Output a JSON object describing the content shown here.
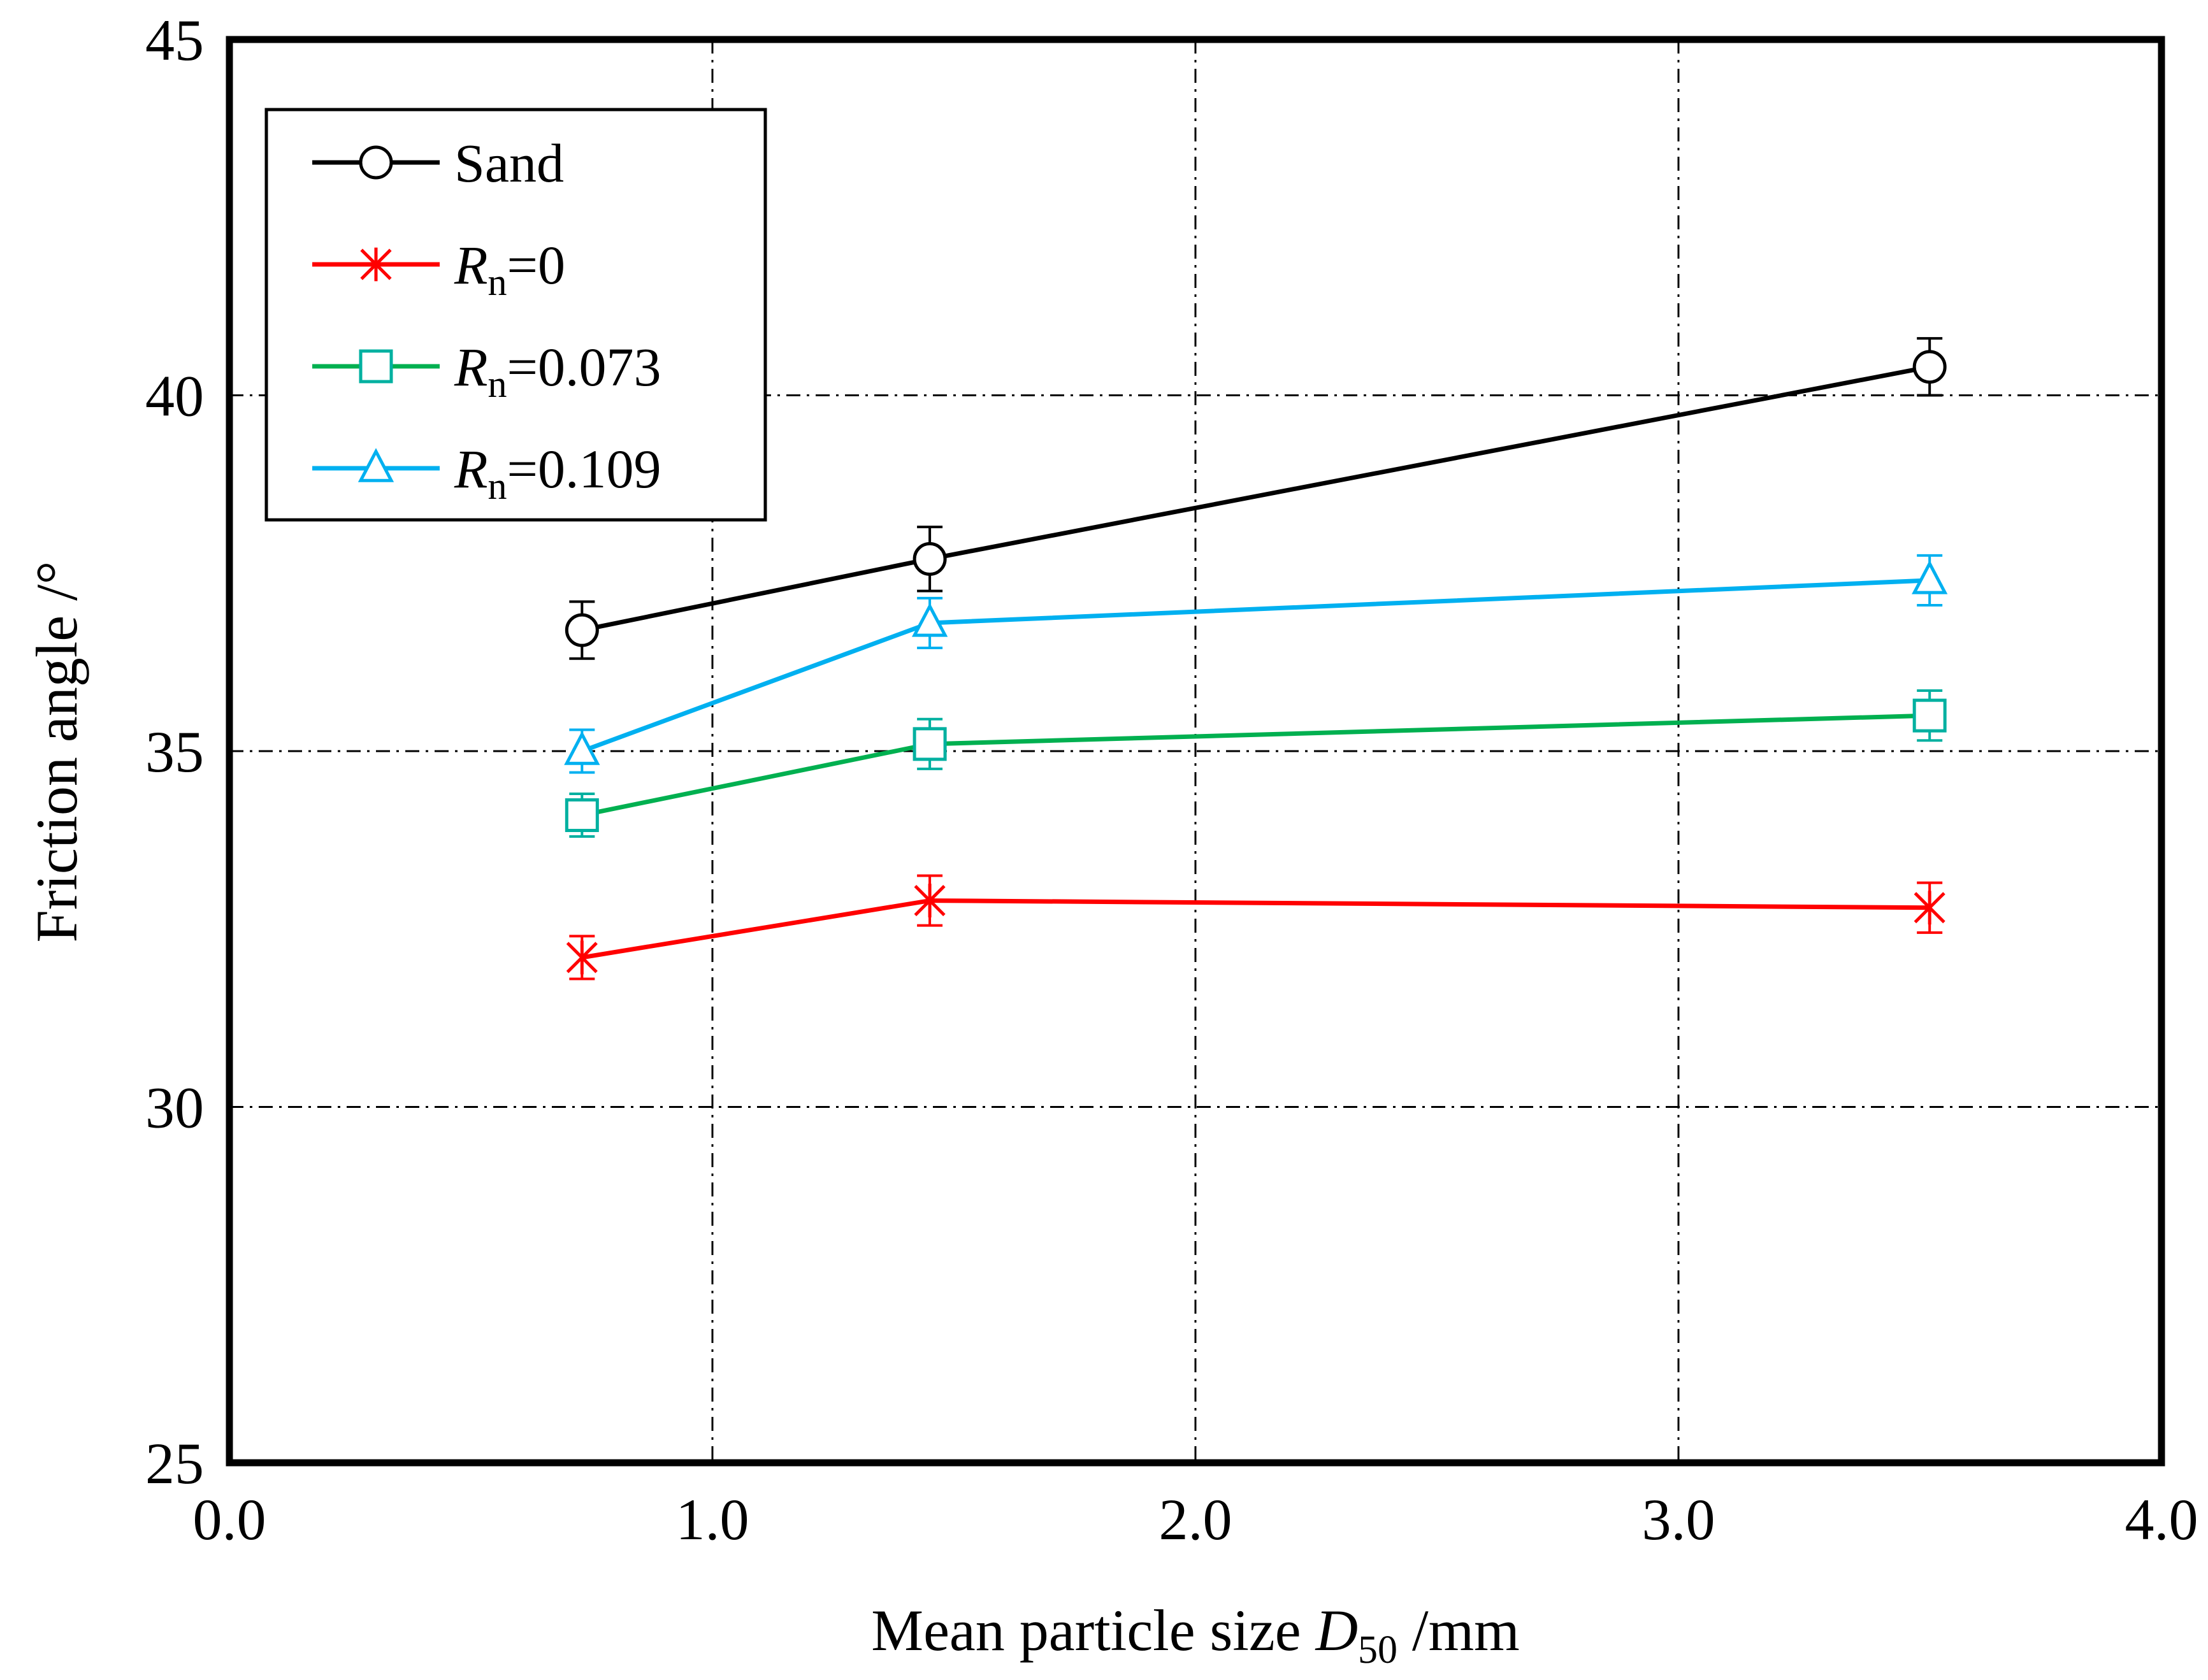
{
  "chart_data": {
    "type": "line",
    "title": "",
    "xlabel_main": "Mean particle size ",
    "xlabel_symbol": "D",
    "xlabel_subscript": "50",
    "xlabel_unit": " /mm",
    "ylabel": "Friction angle /°",
    "xlim": [
      0.0,
      4.0
    ],
    "ylim": [
      25,
      45
    ],
    "xticks": [
      "0.0",
      "1.0",
      "2.0",
      "3.0",
      "4.0"
    ],
    "yticks": [
      "25",
      "30",
      "35",
      "40",
      "45"
    ],
    "grid": true,
    "legend_position": "top-left",
    "series": [
      {
        "name": "Sand",
        "name_prefix": "",
        "name_subscript": "",
        "name_suffix": "",
        "color": "#000000",
        "marker": "circle",
        "x": [
          0.73,
          1.45,
          3.52
        ],
        "y": [
          36.7,
          37.7,
          40.4
        ],
        "err": [
          0.4,
          0.45,
          0.4
        ]
      },
      {
        "name": "Rn=0",
        "name_prefix": "R",
        "name_subscript": "n",
        "name_suffix": "=0",
        "color": "#ff0000",
        "marker": "x-star",
        "x": [
          0.73,
          1.45,
          3.52
        ],
        "y": [
          32.1,
          32.9,
          32.8
        ],
        "err": [
          0.3,
          0.35,
          0.35
        ]
      },
      {
        "name": "Rn=0.073",
        "name_prefix": "R",
        "name_subscript": "n",
        "name_suffix": "=0.073",
        "color": "#00b050",
        "marker": "square",
        "marker_color": "#00b0a0",
        "x": [
          0.73,
          1.45,
          3.52
        ],
        "y": [
          34.1,
          35.1,
          35.5
        ],
        "err": [
          0.3,
          0.35,
          0.35
        ]
      },
      {
        "name": "Rn=0.109",
        "name_prefix": "R",
        "name_subscript": "n",
        "name_suffix": "=0.109",
        "color": "#00b0f0",
        "marker": "triangle",
        "x": [
          0.73,
          1.45,
          3.52
        ],
        "y": [
          35.0,
          36.8,
          37.4
        ],
        "err": [
          0.3,
          0.35,
          0.35
        ]
      }
    ]
  }
}
